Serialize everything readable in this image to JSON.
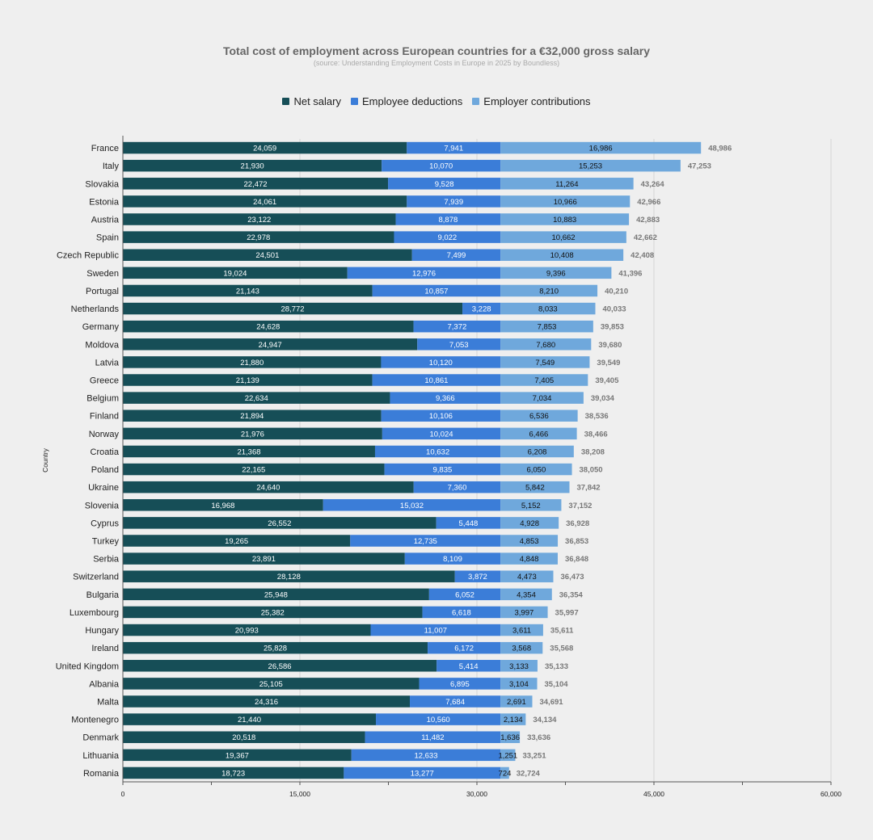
{
  "chart_data": {
    "type": "bar",
    "orientation": "horizontal",
    "stacked": true,
    "title": "Total cost of employment across European countries for a €32,000 gross salary",
    "subtitle": "(source: Understanding Employment Costs in Europe in 2025 by Boundless)",
    "ylabel": "Country",
    "xlabel": "",
    "xlim": [
      0,
      60000
    ],
    "x_ticks": [
      "0",
      "15,000",
      "30,000",
      "45,000",
      "60,000"
    ],
    "x_tick_values": [
      0,
      15000,
      30000,
      45000,
      60000
    ],
    "legend_position": "top",
    "grid": true,
    "categories": [
      "France",
      "Italy",
      "Slovakia",
      "Estonia",
      "Austria",
      "Spain",
      "Czech Republic",
      "Sweden",
      "Portugal",
      "Netherlands",
      "Germany",
      "Moldova",
      "Latvia",
      "Greece",
      "Belgium",
      "Finland",
      "Norway",
      "Croatia",
      "Poland",
      "Ukraine",
      "Slovenia",
      "Cyprus",
      "Turkey",
      "Serbia",
      "Switzerland",
      "Bulgaria",
      "Luxembourg",
      "Hungary",
      "Ireland",
      "United Kingdom",
      "Albania",
      "Malta",
      "Montenegro",
      "Denmark",
      "Lithuania",
      "Romania"
    ],
    "series": [
      {
        "name": "Net salary",
        "color": "#164e57",
        "label_color": "#ffffff",
        "values": [
          24059,
          21930,
          22472,
          24061,
          23122,
          22978,
          24501,
          19024,
          21143,
          28772,
          24628,
          24947,
          21880,
          21139,
          22634,
          21894,
          21976,
          21368,
          22165,
          24640,
          16968,
          26552,
          19265,
          23891,
          28128,
          25948,
          25382,
          20993,
          25828,
          26586,
          25105,
          24316,
          21440,
          20518,
          19367,
          18723
        ],
        "labels": [
          "24,059",
          "21,930",
          "22,472",
          "24,061",
          "23,122",
          "22,978",
          "24,501",
          "19,024",
          "21,143",
          "28,772",
          "24,628",
          "24,947",
          "21,880",
          "21,139",
          "22,634",
          "21,894",
          "21,976",
          "21,368",
          "22,165",
          "24,640",
          "16,968",
          "26,552",
          "19,265",
          "23,891",
          "28,128",
          "25,948",
          "25,382",
          "20,993",
          "25,828",
          "26,586",
          "25,105",
          "24,316",
          "21,440",
          "20,518",
          "19,367",
          "18,723"
        ]
      },
      {
        "name": "Employee deductions",
        "color": "#3b7dd8",
        "label_color": "#ffffff",
        "values": [
          7941,
          10070,
          9528,
          7939,
          8878,
          9022,
          7499,
          12976,
          10857,
          3228,
          7372,
          7053,
          10120,
          10861,
          9366,
          10106,
          10024,
          10632,
          9835,
          7360,
          15032,
          5448,
          12735,
          8109,
          3872,
          6052,
          6618,
          11007,
          6172,
          5414,
          6895,
          7684,
          10560,
          11482,
          12633,
          13277
        ],
        "labels": [
          "7,941",
          "10,070",
          "9,528",
          "7,939",
          "8,878",
          "9,022",
          "7,499",
          "12,976",
          "10,857",
          "3,228",
          "7,372",
          "7,053",
          "10,120",
          "10,861",
          "9,366",
          "10,106",
          "10,024",
          "10,632",
          "9,835",
          "7,360",
          "15,032",
          "5,448",
          "12,735",
          "8,109",
          "3,872",
          "6,052",
          "6,618",
          "11,007",
          "6,172",
          "5,414",
          "6,895",
          "7,684",
          "10,560",
          "11,482",
          "12,633",
          "13,277"
        ]
      },
      {
        "name": "Employer contributions",
        "color": "#6fa8dc",
        "label_color": "#111111",
        "values": [
          16986,
          15253,
          11264,
          10966,
          10883,
          10662,
          10408,
          9396,
          8210,
          8033,
          7853,
          7680,
          7549,
          7405,
          7034,
          6536,
          6466,
          6208,
          6050,
          5842,
          5152,
          4928,
          4853,
          4848,
          4473,
          4354,
          3997,
          3611,
          3568,
          3133,
          3104,
          2691,
          2134,
          1636,
          1251,
          724
        ],
        "labels": [
          "16,986",
          "15,253",
          "11,264",
          "10,966",
          "10,883",
          "10,662",
          "10,408",
          "9,396",
          "8,210",
          "8,033",
          "7,853",
          "7,680",
          "7,549",
          "7,405",
          "7,034",
          "6,536",
          "6,466",
          "6,208",
          "6,050",
          "5,842",
          "5,152",
          "4,928",
          "4,853",
          "4,848",
          "4,473",
          "4,354",
          "3,997",
          "3,611",
          "3,568",
          "3,133",
          "3,104",
          "2,691",
          "2,134",
          "1,636",
          "1,251",
          "724"
        ]
      }
    ],
    "totals": [
      48986,
      47253,
      43264,
      42966,
      42883,
      42662,
      42408,
      41396,
      40210,
      40033,
      39853,
      39680,
      39549,
      39405,
      39034,
      38536,
      38466,
      38208,
      38050,
      37842,
      37152,
      36928,
      36853,
      36848,
      36473,
      36354,
      35997,
      35611,
      35568,
      35133,
      35104,
      34691,
      34134,
      33636,
      33251,
      32724
    ],
    "total_labels": [
      "48,986",
      "47,253",
      "43,264",
      "42,966",
      "42,883",
      "42,662",
      "42,408",
      "41,396",
      "40,210",
      "40,033",
      "39,853",
      "39,680",
      "39,549",
      "39,405",
      "39,034",
      "38,536",
      "38,466",
      "38,208",
      "38,050",
      "37,842",
      "37,152",
      "36,928",
      "36,853",
      "36,848",
      "36,473",
      "36,354",
      "35,997",
      "35,611",
      "35,568",
      "35,133",
      "35,104",
      "34,691",
      "34,134",
      "33,636",
      "33,251",
      "32,724"
    ],
    "total_label_color": "#777777"
  }
}
